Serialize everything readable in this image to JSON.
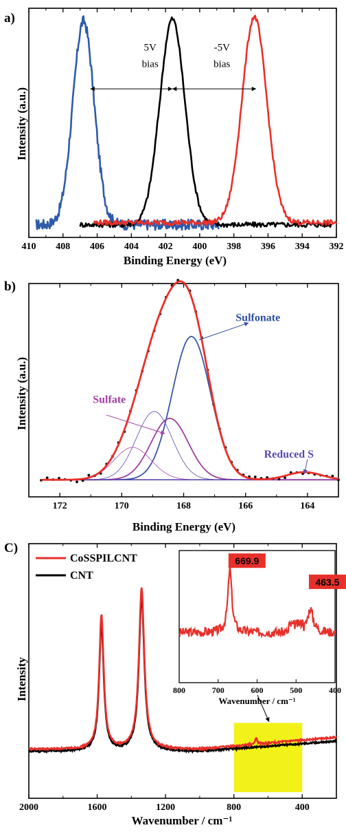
{
  "chart_data": [
    {
      "type": "line",
      "panel_label": "a)",
      "xlabel": "Binding Energy (eV)",
      "ylabel": "Intensity (a.u.)",
      "xlim": [
        410,
        392
      ],
      "ylim": [
        0,
        1.08
      ],
      "x_ticks": [
        410,
        408,
        406,
        404,
        402,
        400,
        398,
        396,
        394,
        392
      ],
      "y_ticks": [],
      "grid": false,
      "annotations": [
        {
          "id": "5v",
          "lines": [
            "5V",
            "bias"
          ],
          "x": 402.9,
          "y": 0.88
        },
        {
          "id": "m5v",
          "lines": [
            "-5V",
            "bias"
          ],
          "x": 398.7,
          "y": 0.88
        }
      ],
      "arrows": [
        {
          "x1": 406.4,
          "x2": 401.6,
          "y": 0.7
        },
        {
          "x1": 401.6,
          "x2": 396.7,
          "y": 0.7
        }
      ],
      "series": [
        {
          "color": "#2e5aa8",
          "shape": "gauss",
          "x": [
            409.6,
            398.9
          ],
          "base": 0.06,
          "center": 406.8,
          "amp": 0.96,
          "sigma": 0.62,
          "noise": 0.025
        },
        {
          "color": "#000000",
          "shape": "gauss",
          "x": [
            407.0,
            392.3
          ],
          "base": 0.06,
          "center": 401.6,
          "amp": 0.97,
          "sigma": 0.73,
          "noise": 0.012
        },
        {
          "color": "#e8302b",
          "shape": "gauss",
          "x": [
            406.2,
            392.0
          ],
          "base": 0.07,
          "center": 396.8,
          "amp": 0.97,
          "sigma": 0.72,
          "noise": 0.012
        }
      ]
    },
    {
      "type": "line",
      "panel_label": "b)",
      "xlabel": "Binding Energy (eV)",
      "ylabel": "Intensity (a.u.)",
      "xlim": [
        173,
        163
      ],
      "ylim": [
        -0.1,
        1.15
      ],
      "x_ticks": [
        172,
        170,
        168,
        166,
        164
      ],
      "y_ticks": [],
      "grid": false,
      "annotations": [
        {
          "id": "sulfonate",
          "text": "Sulfonate",
          "x": 165.6,
          "y": 0.93,
          "color": "#2e4fa0"
        },
        {
          "id": "sulfate",
          "text": "Sulfate",
          "x": 170.4,
          "y": 0.45,
          "color": "#a23ea4"
        },
        {
          "id": "reducedS",
          "text": "Reduced S",
          "x": 164.6,
          "y": 0.13,
          "color": "#5a4ab0"
        }
      ],
      "arrows": [
        {
          "from": [
            167.5,
            0.82
          ],
          "to": [
            165.9,
            0.92
          ],
          "color": "#2e4fa0"
        },
        {
          "from": [
            170.5,
            0.38
          ],
          "to": [
            168.6,
            0.27
          ],
          "color": "#a23ea4"
        },
        {
          "from": [
            164.0,
            0.12
          ],
          "to": [
            164.1,
            0.035
          ],
          "color": "#5a4ab0"
        }
      ],
      "components": [
        {
          "name": "Sulfonate",
          "center": 167.75,
          "amp": 0.84,
          "sigma": 0.62,
          "color": "#3a56a5",
          "width": 1.8
        },
        {
          "name": "",
          "center": 168.95,
          "amp": 0.4,
          "sigma": 0.58,
          "color": "#6b5ab3",
          "width": 0.9
        },
        {
          "name": "Sulfate",
          "center": 168.45,
          "amp": 0.36,
          "sigma": 0.6,
          "color": "#9b3f9f",
          "width": 1.8
        },
        {
          "name": "",
          "center": 169.65,
          "amp": 0.19,
          "sigma": 0.6,
          "color": "#b45cb8",
          "width": 0.9
        },
        {
          "name": "Reduced S",
          "center": 164.1,
          "amp": 0.045,
          "sigma": 0.55,
          "color": "#5a4ab0",
          "width": 1.4
        }
      ],
      "envelope_color": "#e8302b",
      "data_points_color": "#000000"
    },
    {
      "type": "line",
      "panel_label": "C)",
      "xlabel": "Wavenumber / cm⁻¹",
      "ylabel": "Intensity",
      "xlim": [
        2000,
        200
      ],
      "ylim": [
        -0.25,
        1.0
      ],
      "x_ticks": [
        2000,
        1600,
        1200,
        800,
        400
      ],
      "y_ticks": [],
      "grid": false,
      "legend": {
        "position": "top-left",
        "entries": [
          {
            "name": "CoSSPILCNT",
            "color": "#e8302b"
          },
          {
            "name": "CNT",
            "color": "#000000"
          }
        ]
      },
      "highlight": {
        "x": [
          800,
          400
        ],
        "y": [
          -0.22,
          0.12
        ],
        "color": "#f2f21a"
      },
      "series": [
        {
          "name": "CoSSPILCNT",
          "color": "#e8302b",
          "peaks": [
            [
              1575,
              0.66,
              16
            ],
            [
              1340,
              0.79,
              19
            ],
            [
              669.9,
              0.03,
              7
            ]
          ],
          "base": [
            [
              2000,
              -0.01
            ],
            [
              1000,
              -0.01
            ],
            [
              200,
              0.05
            ]
          ]
        },
        {
          "name": "CNT",
          "color": "#000000",
          "peaks": [
            [
              1575,
              0.63,
              16
            ],
            [
              1340,
              0.76,
              19
            ]
          ],
          "base": [
            [
              2000,
              -0.02
            ],
            [
              1000,
              -0.02
            ],
            [
              200,
              0.03
            ]
          ]
        }
      ],
      "inset": {
        "xlabel": "Wavenumber / cm⁻¹",
        "xlim": [
          800,
          400
        ],
        "ylim": [
          0,
          1
        ],
        "x_ticks": [
          800,
          700,
          600,
          500,
          400
        ],
        "series": {
          "color": "#e8302b",
          "x": [
            800,
            400
          ],
          "base": 0.38,
          "peaks": [
            [
              669.9,
              0.48,
              6
            ],
            [
              463.5,
              0.18,
              9
            ]
          ],
          "noise": 0.035
        },
        "labels": [
          {
            "text": "669.9",
            "x": 669.9,
            "y": 0.9
          },
          {
            "text": "463.5",
            "x": 463.5,
            "y": 0.74
          }
        ],
        "label_color": "#e8302b",
        "label_text_color": "#000000"
      }
    }
  ]
}
